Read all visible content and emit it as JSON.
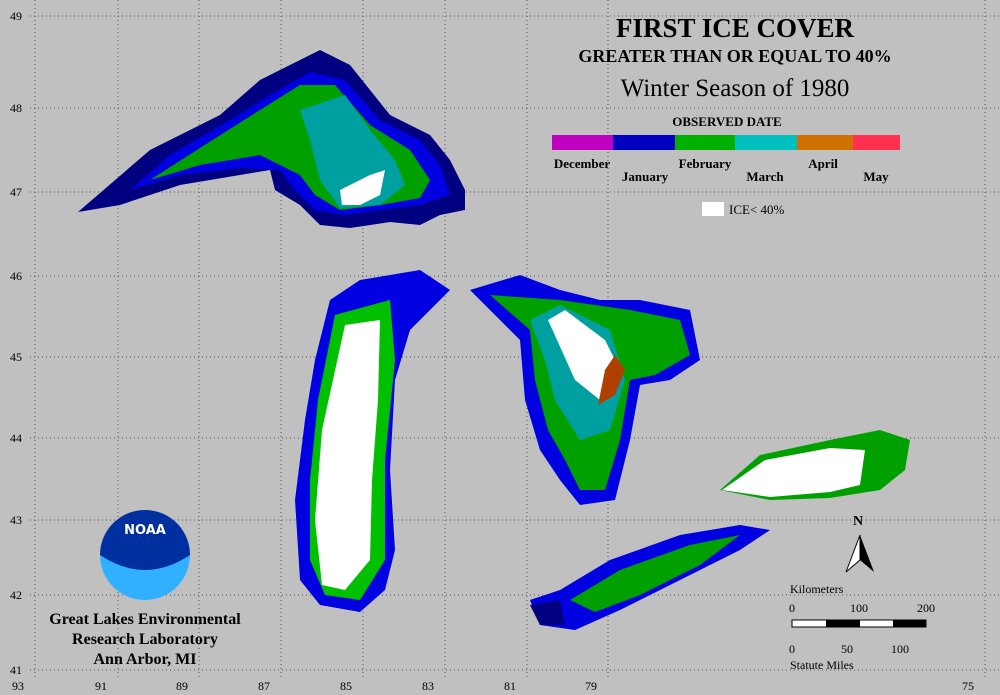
{
  "header": {
    "title": "FIRST ICE COVER",
    "subtitle": "GREATER THAN OR EQUAL TO 40%",
    "season": "Winter Season of 1980"
  },
  "legend": {
    "title": "OBSERVED DATE",
    "labels": [
      "December",
      "January",
      "February",
      "March",
      "April",
      "May"
    ],
    "ice_label": "ICE< 40%"
  },
  "latitude_labels": [
    49,
    48,
    47,
    46,
    45,
    44,
    43,
    42,
    41
  ],
  "longitude_labels": [
    93,
    91,
    89,
    87,
    85,
    83,
    81,
    79,
    75
  ],
  "scale": {
    "km_title": "Kilometers",
    "km_ticks": [
      0,
      100,
      200
    ],
    "mi_ticks": [
      0,
      50,
      100
    ],
    "mi_title": "Statute Miles"
  },
  "north": "N",
  "logo": "NOAA",
  "organization": [
    "Great Lakes Environmental",
    "Research Laboratory",
    "Ann Arbor, MI"
  ]
}
